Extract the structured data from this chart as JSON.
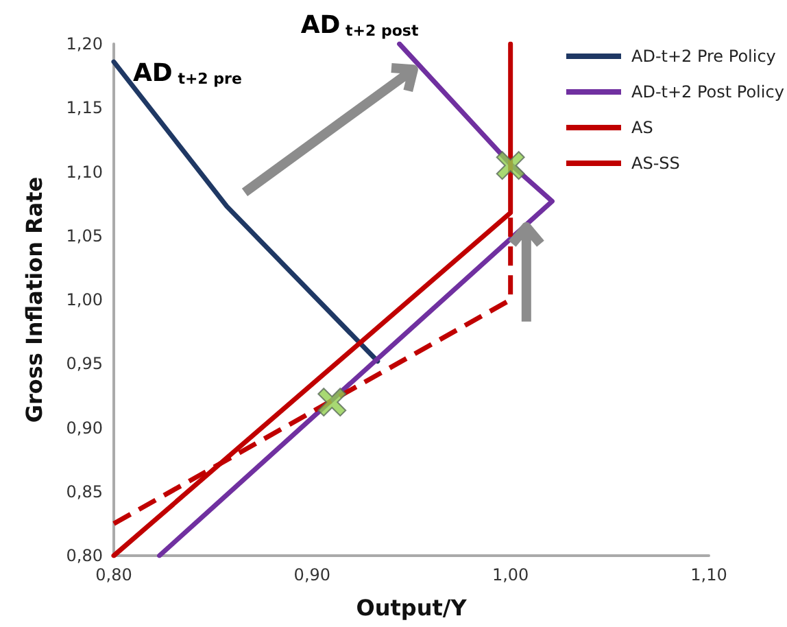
{
  "chart_data": {
    "type": "line",
    "xlabel": "Output/Y",
    "ylabel": "Gross Inflation Rate",
    "xlim": [
      0.8,
      1.1
    ],
    "xticks": [
      {
        "value": 0.8,
        "label": "0,80"
      },
      {
        "value": 0.9,
        "label": "0,90"
      },
      {
        "value": 1.0,
        "label": "1,00"
      },
      {
        "value": 1.1,
        "label": "1,10"
      }
    ],
    "ylim": [
      0.8,
      1.2
    ],
    "yticks": [
      {
        "value": 0.8,
        "label": "0,80"
      },
      {
        "value": 0.85,
        "label": "0,85"
      },
      {
        "value": 0.9,
        "label": "0,90"
      },
      {
        "value": 0.95,
        "label": "0,95"
      },
      {
        "value": 1.0,
        "label": "1,00"
      },
      {
        "value": 1.05,
        "label": "1,05"
      },
      {
        "value": 1.1,
        "label": "1,10"
      },
      {
        "value": 1.15,
        "label": "1,15"
      },
      {
        "value": 1.2,
        "label": "1,20"
      }
    ],
    "grid": false,
    "legend": "top right",
    "series": [
      {
        "name": "AD-t+2 Pre Policy",
        "color": "#1f3864",
        "x": [
          0.8,
          0.857,
          0.933
        ],
        "values": [
          1.186,
          1.073,
          0.952
        ]
      },
      {
        "name": "AD-t+2 Post Policy",
        "color": "#7030a0",
        "x": [
          0.944,
          1.0,
          1.021,
          0.823
        ],
        "values": [
          1.2,
          1.106,
          1.077,
          0.8
        ]
      },
      {
        "name": "AS",
        "color": "#c00000",
        "x": [
          0.8,
          1.0,
          1.0
        ],
        "values": [
          0.8,
          1.068,
          1.2
        ]
      },
      {
        "name": "AS-SS",
        "color": "#c00000",
        "line_style": "dashed",
        "x": [
          0.8,
          1.0,
          1.0
        ],
        "values": [
          0.825,
          1.0,
          1.07
        ]
      },
      {
        "type": "scatter",
        "marker": "cross",
        "color": "#92d050",
        "x": [
          1.0,
          0.91
        ],
        "values": [
          1.105,
          0.92
        ]
      }
    ],
    "annotations": [
      {
        "text": "AD$_{t+2 pre}$",
        "x": 0.8,
        "y": 1.186
      },
      {
        "text": "AD$_{t+2 post}$",
        "x": 0.944,
        "y": 1.2
      }
    ]
  }
}
